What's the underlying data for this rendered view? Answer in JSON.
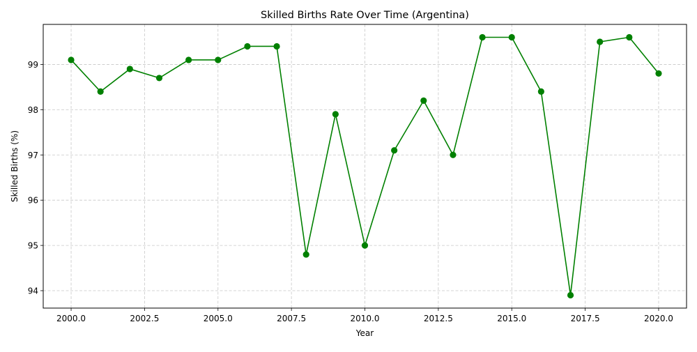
{
  "chart_data": {
    "type": "line",
    "title": "Skilled Births Rate Over Time (Argentina)",
    "xlabel": "Year",
    "ylabel": "Skilled Births (%)",
    "xlim": [
      1999.05,
      2020.95
    ],
    "ylim": [
      93.615,
      99.885
    ],
    "x_ticks": [
      2000,
      2002.5,
      2005,
      2007.5,
      2010,
      2012.5,
      2015,
      2017.5,
      2020
    ],
    "x_tick_labels": [
      "2000.0",
      "2002.5",
      "2005.0",
      "2007.5",
      "2010.0",
      "2012.5",
      "2015.0",
      "2017.5",
      "2020.0"
    ],
    "y_ticks": [
      94,
      95,
      96,
      97,
      98,
      99
    ],
    "y_tick_labels": [
      "94",
      "95",
      "96",
      "97",
      "98",
      "99"
    ],
    "grid": true,
    "color": "#008000",
    "grid_color": "#c8c8c8",
    "series": [
      {
        "x": [
          2000,
          2001,
          2002,
          2003,
          2004,
          2005,
          2006,
          2007,
          2008,
          2009,
          2010,
          2011,
          2012,
          2013,
          2014,
          2015,
          2016,
          2017,
          2018,
          2019,
          2020
        ],
        "values": [
          99.1,
          98.4,
          98.9,
          98.7,
          99.1,
          99.1,
          99.4,
          99.4,
          94.8,
          97.9,
          95.0,
          97.1,
          98.2,
          97.0,
          99.6,
          99.6,
          98.4,
          93.9,
          99.5,
          99.6,
          98.8
        ]
      }
    ]
  }
}
